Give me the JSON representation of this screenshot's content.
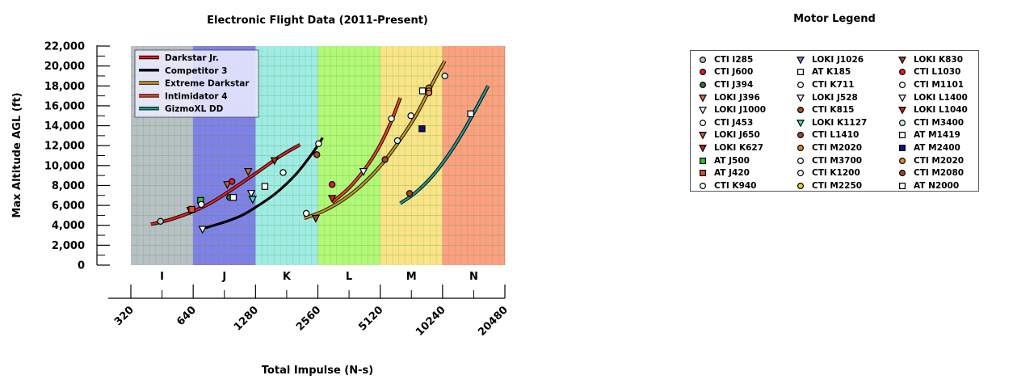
{
  "chart_data": {
    "type": "scatter",
    "title": "Electronic Flight Data (2011-Present)",
    "xlabel": "Total Impulse (N-s)",
    "ylabel": "Max Altitude AGL (ft)",
    "x_scale": "log2",
    "xlim": [
      320,
      20480
    ],
    "ylim": [
      0,
      22000
    ],
    "x_ticks": [
      "320",
      "640",
      "1280",
      "2560",
      "5120",
      "10240",
      "20480"
    ],
    "y_ticks": [
      "0",
      "2,000",
      "4,000",
      "6,000",
      "8,000",
      "10,000",
      "12,000",
      "14,000",
      "16,000",
      "18,000",
      "20,000",
      "22,000"
    ],
    "grid": true,
    "impulse_classes": [
      {
        "label": "I",
        "range": [
          320,
          640
        ],
        "color": "#b8c0c4"
      },
      {
        "label": "J",
        "range": [
          640,
          1280
        ],
        "color": "#8080e6"
      },
      {
        "label": "K",
        "range": [
          1280,
          2560
        ],
        "color": "#a0ece4"
      },
      {
        "label": "L",
        "range": [
          2560,
          5120
        ],
        "color": "#b4f878"
      },
      {
        "label": "M",
        "range": [
          5120,
          10240
        ],
        "color": "#fae488"
      },
      {
        "label": "N",
        "range": [
          10240,
          20480
        ],
        "color": "#fca080"
      }
    ],
    "series": [
      {
        "name": "Darkstar Jr.",
        "color": "#e02020",
        "x": [
          400,
          500,
          640,
          800,
          1000,
          1300,
          1700,
          2100
        ],
        "y": [
          4100,
          4600,
          5400,
          6400,
          7700,
          9300,
          11000,
          12100
        ]
      },
      {
        "name": "Competitor 3",
        "color": "#000000",
        "x": [
          720,
          900,
          1100,
          1300,
          1600,
          2000,
          2400,
          2700
        ],
        "y": [
          3700,
          4300,
          5000,
          5900,
          7200,
          9100,
          11200,
          12800
        ]
      },
      {
        "name": "Extreme Darkstar",
        "color": "#c8961e",
        "x": [
          2200,
          2700,
          3300,
          4100,
          5100,
          6200,
          7700,
          9400,
          10500
        ],
        "y": [
          4700,
          5400,
          6400,
          7900,
          9900,
          12200,
          15200,
          18700,
          20500
        ]
      },
      {
        "name": "Intimidator 4",
        "color": "#e84020",
        "x": [
          3000,
          3600,
          4300,
          5000,
          5700,
          6400
        ],
        "y": [
          6300,
          7700,
          9600,
          11700,
          14100,
          16800
        ]
      },
      {
        "name": "GizmoXL DD",
        "color": "#1e9696",
        "x": [
          6400,
          7600,
          9100,
          10800,
          12800,
          15200,
          17000
        ],
        "y": [
          6200,
          7300,
          8900,
          10900,
          13300,
          16100,
          18000
        ]
      }
    ],
    "points": [
      {
        "motor": "CTI I285",
        "x": 445,
        "y": 4400
      },
      {
        "motor": "LOKI J1026",
        "x": 620,
        "y": 5500
      },
      {
        "motor": "AT J420",
        "x": 630,
        "y": 5600
      },
      {
        "motor": "AT J500",
        "x": 695,
        "y": 6500
      },
      {
        "motor": "CTI J453",
        "x": 700,
        "y": 6100
      },
      {
        "motor": "LOKI J1000",
        "x": 710,
        "y": 3600
      },
      {
        "motor": "LOKI J650",
        "x": 935,
        "y": 8100
      },
      {
        "motor": "CTI J600",
        "x": 985,
        "y": 8400
      },
      {
        "motor": "CTI J394",
        "x": 960,
        "y": 6800
      },
      {
        "motor": "AT K185",
        "x": 1000,
        "y": 6800
      },
      {
        "motor": "LOKI J396",
        "x": 1180,
        "y": 9400
      },
      {
        "motor": "LOKI J528",
        "x": 1220,
        "y": 7200
      },
      {
        "motor": "LOKI K1127",
        "x": 1240,
        "y": 6600
      },
      {
        "motor": "AT K185",
        "x": 1420,
        "y": 7900
      },
      {
        "motor": "LOKI K627",
        "x": 1580,
        "y": 10500
      },
      {
        "motor": "CTI K711",
        "x": 1740,
        "y": 9300
      },
      {
        "motor": "CTI K940",
        "x": 2250,
        "y": 5200
      },
      {
        "motor": "LOKI K830",
        "x": 2500,
        "y": 4700
      },
      {
        "motor": "CTI K815",
        "x": 2530,
        "y": 11100
      },
      {
        "motor": "CTI K1200",
        "x": 2580,
        "y": 12200
      },
      {
        "motor": "CTI L1030",
        "x": 3000,
        "y": 8100
      },
      {
        "motor": "LOKI L1040",
        "x": 3000,
        "y": 6700
      },
      {
        "motor": "LOKI L1400",
        "x": 4250,
        "y": 9400
      },
      {
        "motor": "CTI L1410",
        "x": 5400,
        "y": 10600
      },
      {
        "motor": "CTI M1101",
        "x": 5800,
        "y": 14700
      },
      {
        "motor": "CTI M3400",
        "x": 6200,
        "y": 12500
      },
      {
        "motor": "CTI M2080",
        "x": 7100,
        "y": 7200
      },
      {
        "motor": "CTI M3700",
        "x": 7200,
        "y": 15000
      },
      {
        "motor": "AT M1419",
        "x": 8200,
        "y": 17500
      },
      {
        "motor": "AT M2400",
        "x": 8150,
        "y": 13700
      },
      {
        "motor": "CTI M2020",
        "x": 8800,
        "y": 17800
      },
      {
        "motor": "CTI M2250",
        "x": 8800,
        "y": 17500
      },
      {
        "motor": "CTI M2020",
        "x": 8800,
        "y": 17300
      },
      {
        "motor": "CTI M3400",
        "x": 10500,
        "y": 19000
      },
      {
        "motor": "AT N2000",
        "x": 14000,
        "y": 15200
      }
    ]
  },
  "legend": {
    "title": "Motor Legend",
    "columns": [
      [
        {
          "label": "CTI I285",
          "marker": "circle",
          "fill": "#b8c0c4"
        },
        {
          "label": "CTI J600",
          "marker": "circle",
          "fill": "#e02020"
        },
        {
          "label": "CTI J394",
          "marker": "circle",
          "fill": "#2a7a2a"
        },
        {
          "label": "LOKI J396",
          "marker": "triangle",
          "fill": "#e06a3a"
        },
        {
          "label": "LOKI J1000",
          "marker": "triangle",
          "fill": "#ffffff"
        },
        {
          "label": "CTI J453",
          "marker": "circle",
          "fill": "#ffffff"
        },
        {
          "label": "LOKI J650",
          "marker": "triangle",
          "fill": "#d05a3a"
        },
        {
          "label": "LOKI K627",
          "marker": "triangle",
          "fill": "#c82020"
        },
        {
          "label": "AT J500",
          "marker": "square",
          "fill": "#28c828"
        },
        {
          "label": "AT J420",
          "marker": "square",
          "fill": "#e05030"
        },
        {
          "label": "CTI K940",
          "marker": "circle",
          "fill": "#ffffff"
        }
      ],
      [
        {
          "label": "LOKI J1026",
          "marker": "triangle",
          "fill": "#8080e6"
        },
        {
          "label": "AT K185",
          "marker": "square",
          "fill": "#ffffff"
        },
        {
          "label": "CTI K711",
          "marker": "circle",
          "fill": "#ffffff"
        },
        {
          "label": "LOKI J528",
          "marker": "triangle",
          "fill": "#ffffff"
        },
        {
          "label": "CTI K815",
          "marker": "circle",
          "fill": "#b04a2a"
        },
        {
          "label": "LOKI K1127",
          "marker": "triangle",
          "fill": "#40e0d0"
        },
        {
          "label": "CTI L1410",
          "marker": "circle",
          "fill": "#a04a2a"
        },
        {
          "label": "CTI M2020",
          "marker": "circle",
          "fill": "#f08020"
        },
        {
          "label": "CTI M3700",
          "marker": "circle",
          "fill": "#ffffff"
        },
        {
          "label": "CTI K1200",
          "marker": "circle",
          "fill": "#ffffff"
        },
        {
          "label": "CTI M2250",
          "marker": "circle",
          "fill": "#f0d020"
        }
      ],
      [
        {
          "label": "LOKI K830",
          "marker": "triangle",
          "fill": "#a04a2a"
        },
        {
          "label": "CTI L1030",
          "marker": "circle",
          "fill": "#e02020"
        },
        {
          "label": "CTI M1101",
          "marker": "circle",
          "fill": "#ffffff"
        },
        {
          "label": "LOKI L1400",
          "marker": "triangle",
          "fill": "#ffffff"
        },
        {
          "label": "LOKI L1040",
          "marker": "triangle",
          "fill": "#e02020"
        },
        {
          "label": "CTI M3400",
          "marker": "circle",
          "fill": "#c8f0f0"
        },
        {
          "label": "AT M1419",
          "marker": "square",
          "fill": "#ffffff"
        },
        {
          "label": "AT M2400",
          "marker": "square",
          "fill": "#101080"
        },
        {
          "label": "CTI M2020",
          "marker": "circle",
          "fill": "#f08020"
        },
        {
          "label": "CTI M2080",
          "marker": "circle",
          "fill": "#a04a2a"
        },
        {
          "label": "AT N2000",
          "marker": "square",
          "fill": "#ffffff"
        }
      ]
    ]
  }
}
